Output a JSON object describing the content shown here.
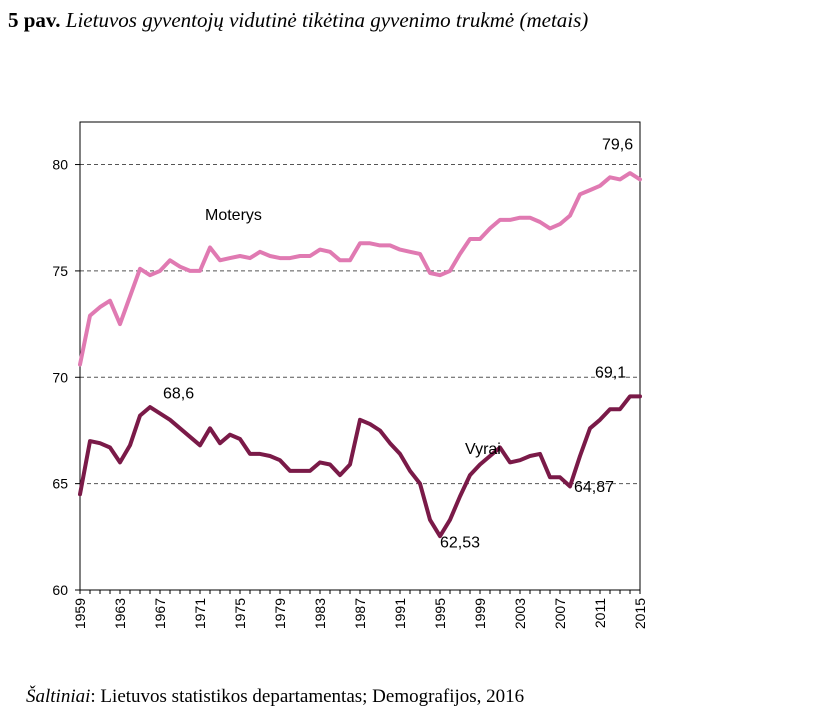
{
  "header": {
    "figure_number": "5 pav.",
    "title": "Lietuvos gyventojų vidutinė tikėtina gyvenimo trukmė (metais)"
  },
  "footer": {
    "source_label": "Šaltiniai",
    "source_text": ": Lietuvos statistikos departamentas; Demografijos, 2016"
  },
  "colors": {
    "moterys": "#e07ab2",
    "vyrai": "#7a1a48",
    "grid": "#555555",
    "axis": "#000000"
  },
  "chart_data": {
    "type": "line",
    "title": "Lietuvos gyventojų vidutinė tikėtina gyvenimo trukmė (metais)",
    "xlabel": "",
    "ylabel": "",
    "ylim": [
      60,
      82
    ],
    "xlim": [
      1959,
      2015
    ],
    "yticks": [
      60,
      65,
      70,
      75,
      80
    ],
    "grid": "dashed horizontal",
    "xtick_labels": [
      "1959",
      "1963",
      "1967",
      "1971",
      "1975",
      "1979",
      "1983",
      "1987",
      "1991",
      "1995",
      "1999",
      "2003",
      "2007",
      "2011",
      "2015"
    ],
    "x": [
      1959,
      1960,
      1961,
      1962,
      1963,
      1964,
      1965,
      1966,
      1967,
      1968,
      1969,
      1970,
      1971,
      1972,
      1973,
      1974,
      1975,
      1976,
      1977,
      1978,
      1979,
      1980,
      1981,
      1982,
      1983,
      1984,
      1985,
      1986,
      1987,
      1988,
      1989,
      1990,
      1991,
      1992,
      1993,
      1994,
      1995,
      1996,
      1997,
      1998,
      1999,
      2000,
      2001,
      2002,
      2003,
      2004,
      2005,
      2006,
      2007,
      2008,
      2009,
      2010,
      2011,
      2012,
      2013,
      2014,
      2015
    ],
    "series": [
      {
        "name": "Moterys",
        "values": [
          70.6,
          72.9,
          73.3,
          73.6,
          72.5,
          73.8,
          75.1,
          74.8,
          75.0,
          75.5,
          75.2,
          75.0,
          75.0,
          76.1,
          75.5,
          75.6,
          75.7,
          75.6,
          75.9,
          75.7,
          75.6,
          75.6,
          75.7,
          75.7,
          76.0,
          75.9,
          75.5,
          75.5,
          76.3,
          76.3,
          76.2,
          76.2,
          76.0,
          75.9,
          75.8,
          74.9,
          74.8,
          75.0,
          75.8,
          76.5,
          76.5,
          77.0,
          77.4,
          77.4,
          77.5,
          77.5,
          77.3,
          77.0,
          77.2,
          77.6,
          78.6,
          78.8,
          79.0,
          79.4,
          79.3,
          79.6,
          79.3
        ]
      },
      {
        "name": "Vyrai",
        "values": [
          64.5,
          67.0,
          66.9,
          66.7,
          66.0,
          66.8,
          68.2,
          68.6,
          68.3,
          68.0,
          67.6,
          67.2,
          66.8,
          67.6,
          66.9,
          67.3,
          67.1,
          66.4,
          66.4,
          66.3,
          66.1,
          65.6,
          65.6,
          65.6,
          66.0,
          65.9,
          65.4,
          65.9,
          68.0,
          67.8,
          67.5,
          66.9,
          66.4,
          65.6,
          65.0,
          63.3,
          62.53,
          63.3,
          64.4,
          65.4,
          65.9,
          66.3,
          66.7,
          66.0,
          66.1,
          66.3,
          66.4,
          65.3,
          65.3,
          64.87,
          66.3,
          67.6,
          68.0,
          68.5,
          68.5,
          69.1,
          69.1
        ]
      }
    ],
    "annotations": [
      {
        "text": "Moterys",
        "x": 1971.5,
        "y": 77.4
      },
      {
        "text": "Vyrai",
        "x": 1997.5,
        "y": 66.4
      },
      {
        "text": "79,6",
        "x": 2011.2,
        "y": 80.7
      },
      {
        "text": "68,6",
        "x": 1967.3,
        "y": 69.0
      },
      {
        "text": "69,1",
        "x": 2010.5,
        "y": 70.0
      },
      {
        "text": "62,53",
        "x": 1995.0,
        "y": 62.0
      },
      {
        "text": "64,87",
        "x": 2008.4,
        "y": 64.6
      }
    ]
  }
}
